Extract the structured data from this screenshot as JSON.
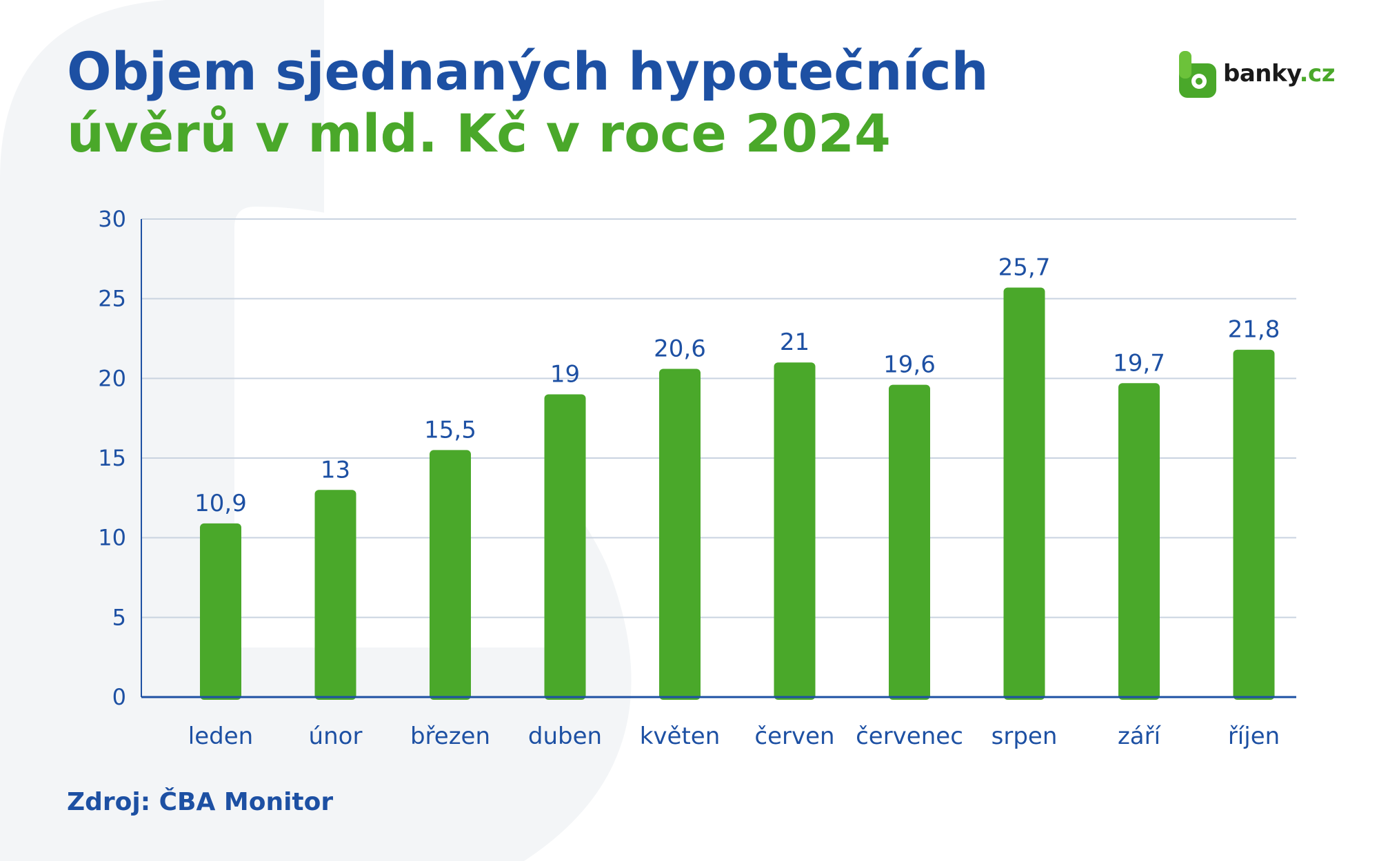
{
  "title": {
    "line1": "Objem sjednaných hypotečních",
    "line2": "úvěrů v mld. Kč v roce 2024"
  },
  "logo": {
    "name": "banky",
    "suffix": ".cz",
    "icon": "banky-logo-icon"
  },
  "source": "Zdroj: ČBA Monitor",
  "colors": {
    "title_blue": "#1d50a3",
    "accent_green": "#4aa82a",
    "grid": "#c9d3e0",
    "axis": "#1d50a3"
  },
  "chart_data": {
    "type": "bar",
    "title": "Objem sjednaných hypotečních úvěrů v mld. Kč v roce 2024",
    "categories": [
      "leden",
      "únor",
      "březen",
      "duben",
      "květen",
      "červen",
      "červenec",
      "srpen",
      "září",
      "říjen"
    ],
    "values": [
      10.9,
      13,
      15.5,
      19,
      20.6,
      21,
      19.6,
      25.7,
      19.7,
      21.8
    ],
    "value_labels": [
      "10,9",
      "13",
      "15,5",
      "19",
      "20,6",
      "21",
      "19,6",
      "25,7",
      "19,7",
      "21,8"
    ],
    "yticks": [
      0,
      5,
      10,
      15,
      20,
      25,
      30
    ],
    "ylim": [
      0,
      30
    ],
    "grid": true,
    "legend": "none"
  }
}
